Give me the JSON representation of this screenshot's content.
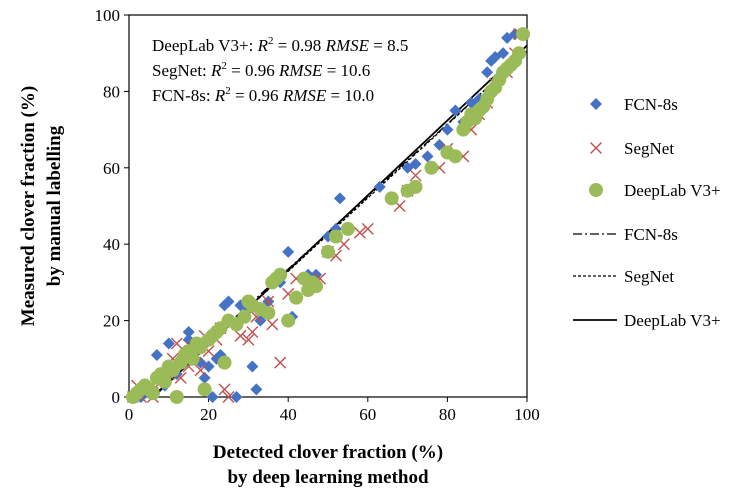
{
  "chart_data": {
    "type": "scatter",
    "xlabel": [
      "Detected clover fraction (%)",
      "by deep learning method"
    ],
    "ylabel": [
      "Measured clover fraction (%)",
      "by manual labelling"
    ],
    "xlim": [
      0,
      100
    ],
    "ylim": [
      0,
      100
    ],
    "x_ticks": [
      "0",
      "20",
      "40",
      "60",
      "80",
      "100"
    ],
    "y_ticks": [
      "0",
      "20",
      "40",
      "60",
      "80",
      "100"
    ],
    "grid": false,
    "legend_position": "right",
    "stats": [
      {
        "model": "DeepLab V3+:",
        "r2_label": "R",
        "r2_sup": "2",
        "r2_value": "= 0.98",
        "rmse_label": "RMSE",
        "rmse_value": "= 8.5"
      },
      {
        "model": "SegNet:",
        "r2_label": "R",
        "r2_sup": "2",
        "r2_value": "= 0.96",
        "rmse_label": "RMSE",
        "rmse_value": "= 10.6"
      },
      {
        "model": "FCN-8s:",
        "r2_label": "R",
        "r2_sup": "2",
        "r2_value": "= 0.96",
        "rmse_label": "RMSE",
        "rmse_value": "= 10.0"
      }
    ],
    "colors": {
      "fcn": "#4472c4",
      "segnet": "#c0504d",
      "deeplab": "#9bbb59",
      "axis": "#000000"
    },
    "series": [
      {
        "name": "FCN-8s",
        "marker": "diamond",
        "color": "#4472c4",
        "x": [
          1,
          2,
          3,
          4,
          5,
          7,
          8,
          9,
          10,
          11,
          12,
          13,
          14,
          15,
          15,
          16,
          17,
          18,
          19,
          20,
          21,
          22,
          23,
          24,
          25,
          27,
          28,
          29,
          30,
          31,
          32,
          33,
          35,
          38,
          40,
          41,
          45,
          47,
          50,
          52,
          53,
          55,
          63,
          70,
          72,
          75,
          78,
          80,
          82,
          84,
          86,
          88,
          90,
          91,
          92,
          94,
          95,
          97
        ],
        "y": [
          0,
          1,
          0,
          2,
          1,
          11,
          5,
          3,
          14,
          8,
          6,
          10,
          12,
          15,
          17,
          14,
          12,
          9,
          5,
          8,
          0,
          10,
          11,
          24,
          25,
          0,
          24,
          21,
          23,
          8,
          2,
          20,
          25,
          30,
          38,
          21,
          32,
          32,
          42,
          44,
          52,
          44,
          55,
          60,
          61,
          63,
          66,
          70,
          75,
          72,
          77,
          78,
          85,
          88,
          89,
          90,
          94,
          95
        ]
      },
      {
        "name": "SegNet",
        "marker": "x",
        "color": "#c0504d",
        "x": [
          1,
          2,
          3,
          4,
          5,
          6,
          8,
          10,
          11,
          12,
          13,
          15,
          16,
          17,
          18,
          19,
          20,
          22,
          23,
          24,
          25,
          28,
          30,
          31,
          32,
          35,
          36,
          38,
          40,
          42,
          45,
          48,
          50,
          52,
          54,
          58,
          60,
          68,
          70,
          72,
          78,
          80,
          84,
          86,
          88,
          90,
          92,
          95,
          97,
          98
        ],
        "y": [
          0,
          3,
          0,
          1,
          2,
          0,
          4,
          6,
          10,
          14,
          5,
          8,
          13,
          11,
          7,
          16,
          12,
          15,
          18,
          2,
          0,
          16,
          15,
          17,
          21,
          25,
          19,
          9,
          27,
          31,
          30,
          31,
          38,
          37,
          40,
          43,
          44,
          50,
          54,
          58,
          60,
          65,
          63,
          70,
          74,
          77,
          82,
          85,
          90,
          95
        ],
        "fit": {
          "label": "SegNet",
          "slope": 0.96,
          "intercept": -5.5
        }
      },
      {
        "name": "DeepLab V3+",
        "marker": "circle",
        "color": "#9bbb59",
        "x": [
          1,
          2,
          3,
          4,
          5,
          6,
          7,
          8,
          9,
          10,
          11,
          12,
          13,
          14,
          15,
          16,
          17,
          18,
          19,
          20,
          21,
          22,
          23,
          24,
          25,
          27,
          29,
          30,
          31,
          33,
          35,
          36,
          37,
          38,
          40,
          42,
          44,
          45,
          46,
          47,
          50,
          52,
          55,
          66,
          70,
          72,
          76,
          80,
          82,
          84,
          85,
          86,
          87,
          88,
          89,
          90,
          91,
          92,
          93,
          94,
          95,
          96,
          97,
          98,
          99
        ],
        "y": [
          0,
          1,
          2,
          3,
          2,
          1,
          5,
          6,
          4,
          8,
          7,
          0,
          9,
          11,
          12,
          10,
          14,
          13,
          2,
          15,
          16,
          17,
          18,
          9,
          20,
          19,
          21,
          25,
          24,
          23,
          22,
          30,
          31,
          32,
          20,
          26,
          31,
          28,
          30,
          29,
          38,
          42,
          44,
          52,
          54,
          55,
          60,
          64,
          63,
          70,
          72,
          74,
          73,
          75,
          76,
          78,
          80,
          81,
          83,
          85,
          86,
          87,
          88,
          90,
          95
        ],
        "fit": {
          "label": "DeepLab V3+",
          "slope": 0.98,
          "intercept": -6.0
        }
      }
    ],
    "fits": [
      {
        "label": "FCN-8s",
        "style": "dash-dot",
        "slope": 0.95,
        "intercept": -4.5
      },
      {
        "label": "SegNet",
        "style": "dashed",
        "slope": 0.96,
        "intercept": -5.5
      },
      {
        "label": "DeepLab V3+",
        "style": "solid",
        "slope": 0.98,
        "intercept": -6.0
      }
    ],
    "legend": [
      {
        "label": "FCN-8s",
        "kind": "diamond",
        "color": "#4472c4"
      },
      {
        "label": "SegNet",
        "kind": "x",
        "color": "#c0504d"
      },
      {
        "label": "DeepLab V3+",
        "kind": "circle",
        "color": "#9bbb59"
      },
      {
        "label": "FCN-8s",
        "kind": "dash-dot",
        "color": "#000000"
      },
      {
        "label": "SegNet",
        "kind": "dashed",
        "color": "#000000"
      },
      {
        "label": "DeepLab V3+",
        "kind": "solid",
        "color": "#000000"
      }
    ]
  }
}
